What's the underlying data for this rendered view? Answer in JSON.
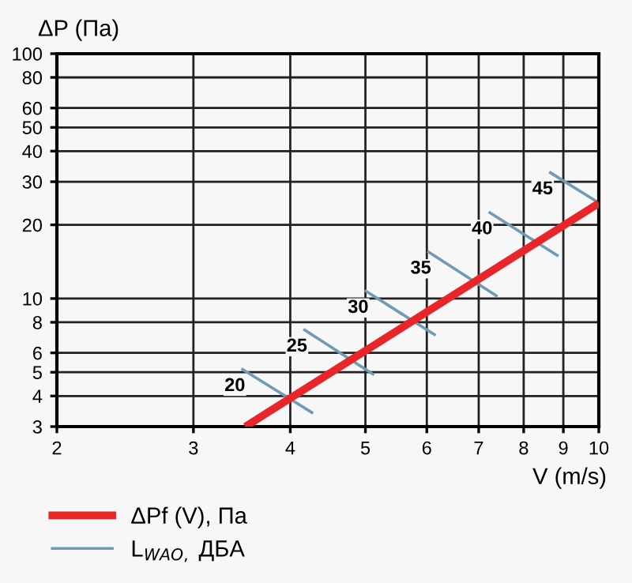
{
  "chart_data": {
    "type": "line",
    "ylabel": "ΔP (Па)",
    "xlabel": "V (m/s)",
    "log": "xy",
    "xlim": [
      2,
      10
    ],
    "ylim": [
      3,
      100
    ],
    "xticks": [
      2,
      3,
      4,
      5,
      6,
      7,
      8,
      9,
      10
    ],
    "yticks": [
      3,
      4,
      5,
      6,
      8,
      10,
      20,
      30,
      40,
      50,
      60,
      80,
      100
    ],
    "grid": true,
    "legend": "bottom left",
    "marker": "none",
    "line_style": "solid",
    "series": [
      {
        "name": "ΔPf (V), Па",
        "color": "#e8262a",
        "x": [
          3.5,
          10
        ],
        "values": [
          3,
          24.5
        ]
      },
      {
        "name": "L$_{WAO,}$ ДБА",
        "color": "#6f9bb5",
        "x": [
          3.46,
          4.28,
          null,
          4.16,
          5.13,
          null,
          4.99,
          6.16,
          null,
          6.01,
          7.4,
          null,
          7.21,
          8.87,
          null,
          8.63,
          10
        ],
        "values": [
          5.17,
          3.4,
          null,
          7.5,
          4.88,
          null,
          10.8,
          7.07,
          null,
          15.6,
          10.2,
          null,
          22.6,
          14.9,
          null,
          32.9,
          24.6
        ]
      }
    ],
    "annotations": [
      {
        "text": "20",
        "x": 3.46,
        "y": 5.17
      },
      {
        "text": "25",
        "x": 4.16,
        "y": 7.5
      },
      {
        "text": "30",
        "x": 4.99,
        "y": 10.8
      },
      {
        "text": "35",
        "x": 6.01,
        "y": 15.6
      },
      {
        "text": "40",
        "x": 7.21,
        "y": 22.6
      },
      {
        "text": "45",
        "x": 8.63,
        "y": 32.9
      }
    ]
  }
}
